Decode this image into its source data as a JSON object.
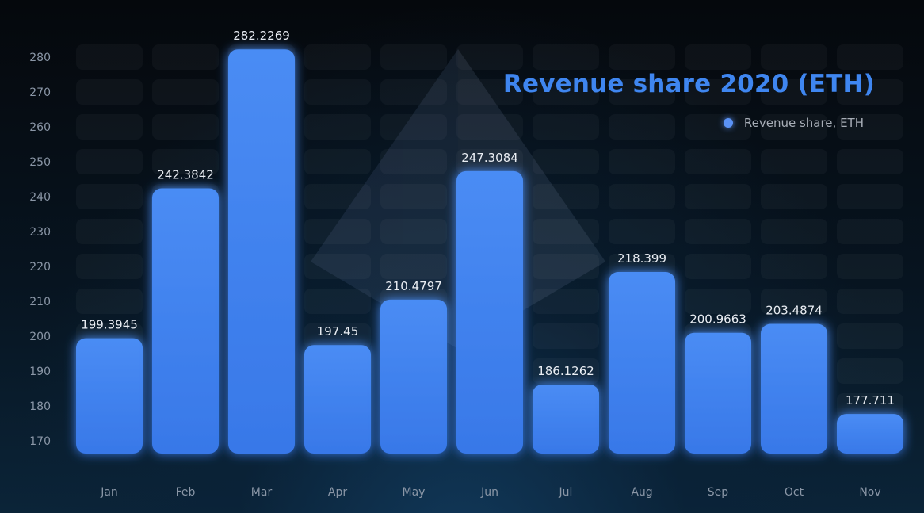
{
  "chart_data": {
    "type": "bar",
    "title": "Revenue share 2020 (ETH)",
    "xlabel": "",
    "ylabel": "",
    "categories": [
      "Jan",
      "Feb",
      "Mar",
      "Apr",
      "May",
      "Jun",
      "Jul",
      "Aug",
      "Sep",
      "Oct",
      "Nov"
    ],
    "series": [
      {
        "name": "Revenue share, ETH",
        "values": [
          199.3945,
          242.3842,
          282.2269,
          197.45,
          210.4797,
          247.3084,
          186.1262,
          218.399,
          200.9663,
          203.4874,
          177.711
        ]
      }
    ],
    "data_labels": [
      "199.3945",
      "242.3842",
      "282.2269",
      "197.45",
      "210.4797",
      "247.3084",
      "186.1262",
      "218.399",
      "200.9663",
      "203.4874",
      "177.711"
    ],
    "y_ticks": [
      170,
      180,
      190,
      200,
      210,
      220,
      230,
      240,
      250,
      260,
      270,
      280
    ],
    "ylim": [
      170,
      282.2269
    ],
    "grid": false,
    "legend_position": "top-right",
    "colors": {
      "bar": "#3f86f0",
      "title": "#3f86f0",
      "tick_text": "#8a96a6",
      "data_label": "#e9edf3"
    }
  }
}
